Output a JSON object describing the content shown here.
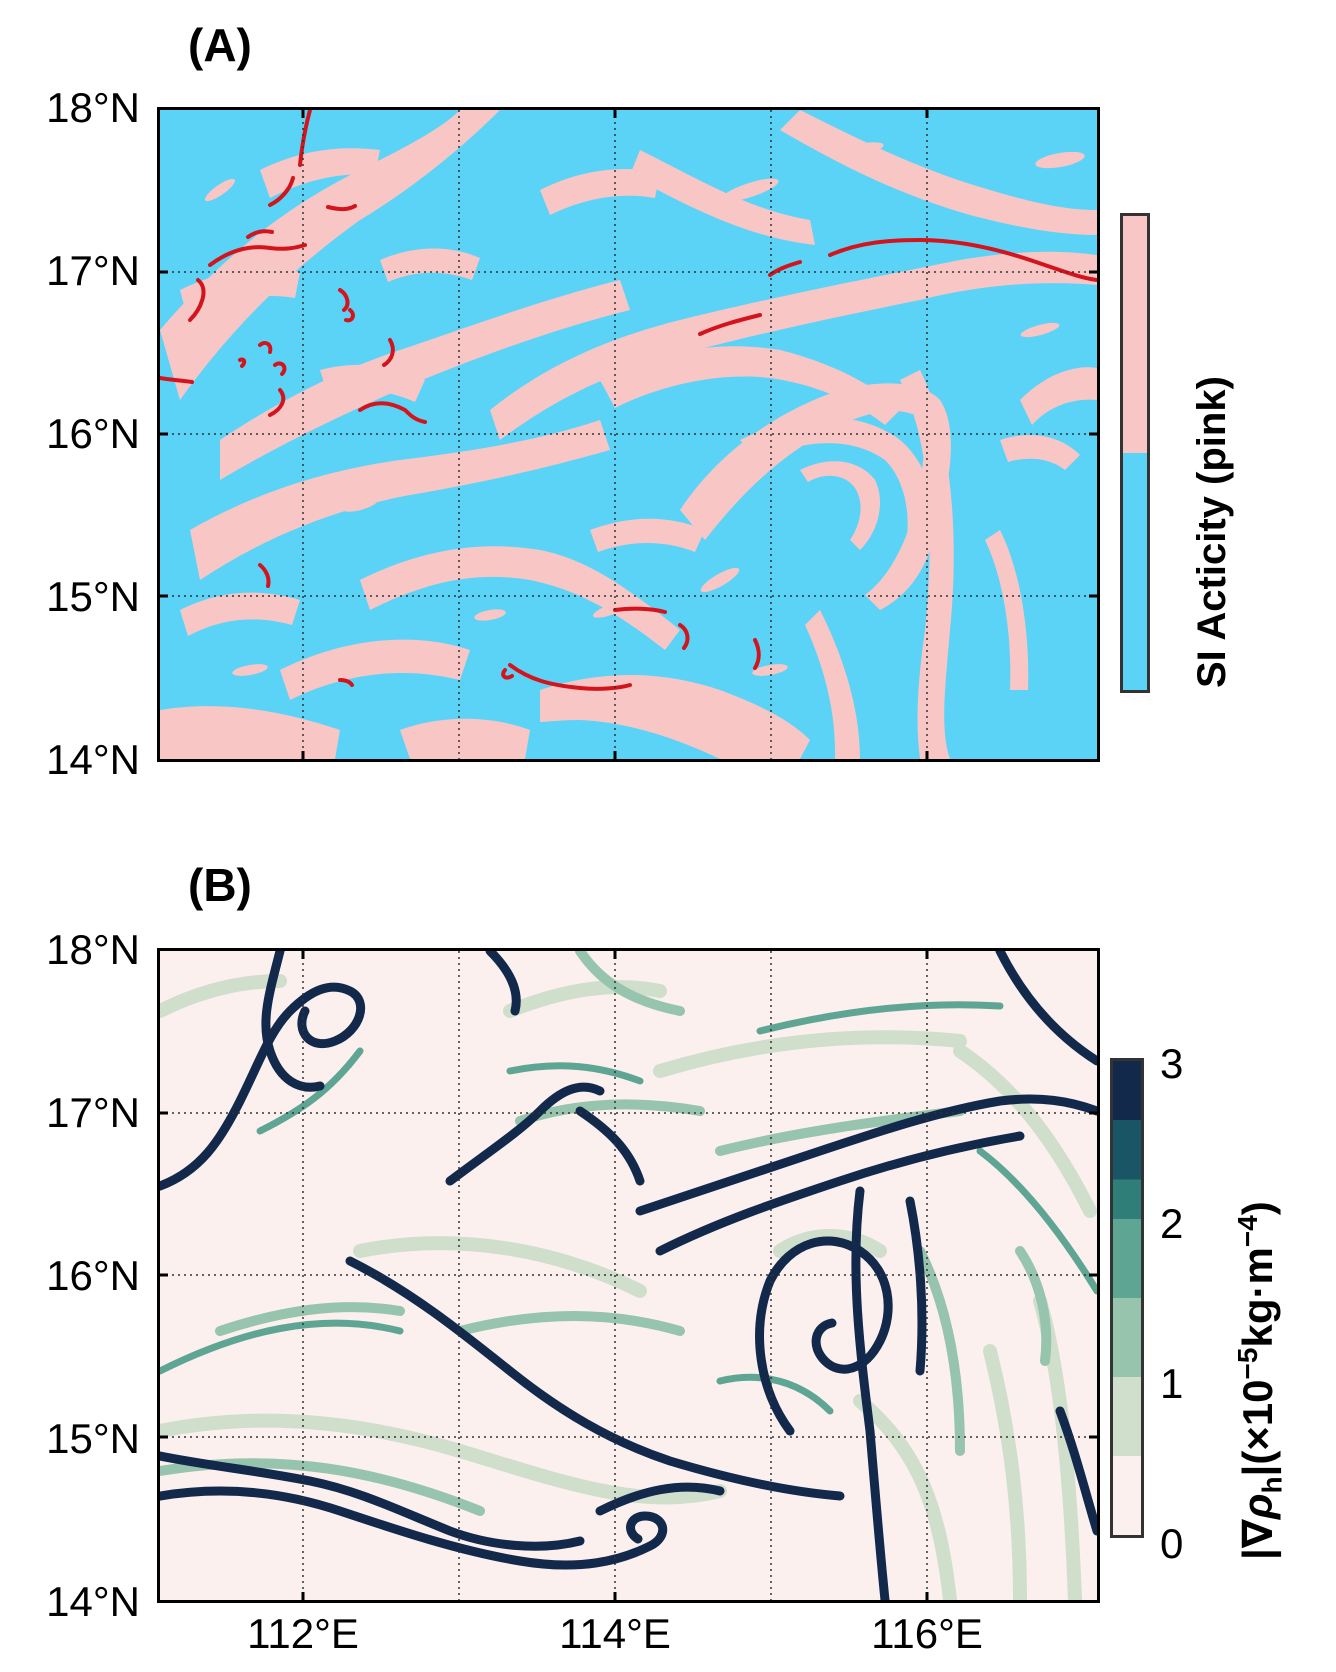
{
  "panels": {
    "a": {
      "label": "(A)"
    },
    "b": {
      "label": "(B)"
    }
  },
  "axes": {
    "lat_ticks": [
      "18°N",
      "17°N",
      "16°N",
      "15°N",
      "14°N"
    ],
    "lon_ticks": [
      "112°E",
      "114°E",
      "116°E"
    ],
    "lat_range": [
      14,
      18
    ],
    "lon_range": [
      111,
      117
    ]
  },
  "colorbar_a": {
    "label": "SI Acticity (pink)",
    "colors": {
      "active": "#f9c6c6",
      "inactive": "#5bd3f7"
    }
  },
  "colorbar_b": {
    "label_parts": [
      "|∇",
      "ρ",
      "h",
      "|(×10",
      "−5",
      "kg·m",
      "−4",
      ")"
    ],
    "ticks": [
      "3",
      "2",
      "1",
      "0"
    ],
    "levels": [
      0,
      0.5,
      1,
      1.5,
      2,
      2.5,
      3
    ],
    "colors": [
      "#fbf0ee",
      "#cfdfcc",
      "#97c4ad",
      "#5fa593",
      "#2f7f78",
      "#1a5566",
      "#13294b"
    ]
  },
  "colors": {
    "frontline": "#d4141c",
    "grid": "#333333"
  }
}
